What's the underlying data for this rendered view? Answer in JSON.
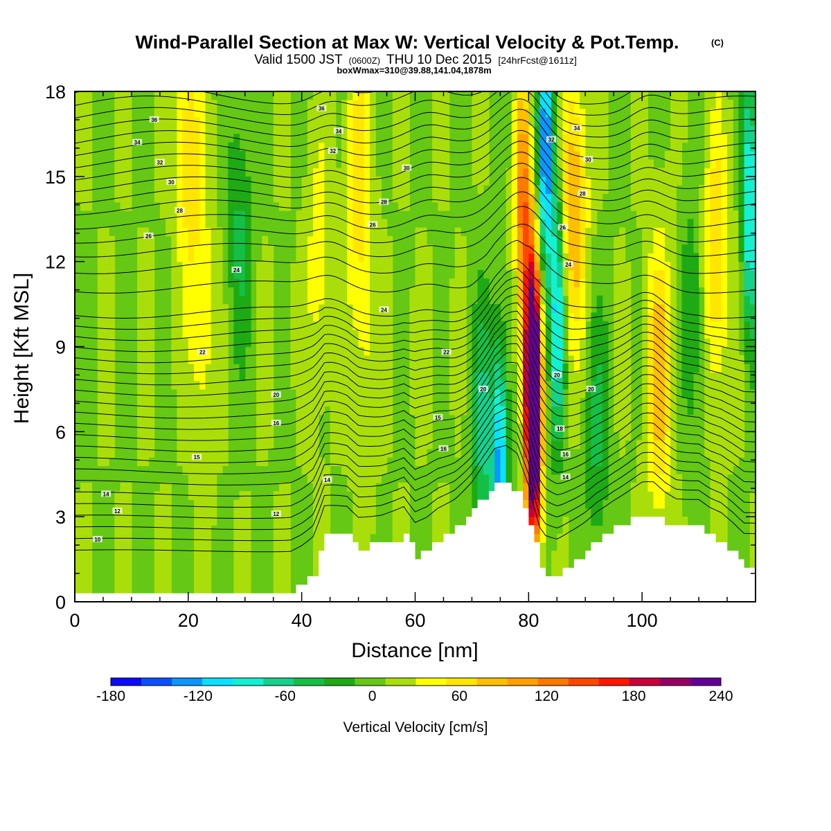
{
  "header": {
    "title": "Wind-Parallel Section at Max W: Vertical Velocity & Pot.Temp.",
    "title_mark": "(C)",
    "valid_prefix": "Valid 1500 JST",
    "valid_utc": "(0600Z)",
    "valid_date": "THU 10 Dec 2015",
    "forecast": "[24hrFcst@1611z]",
    "boxinfo": "boxWmax=310@39.88,141.04,1878m"
  },
  "colors": {
    "palette": [
      "#0a0aff",
      "#0a50ff",
      "#0a96ff",
      "#0ae0ff",
      "#14f0d2",
      "#14d28c",
      "#14bf46",
      "#1eaa14",
      "#64c814",
      "#aade0a",
      "#ffff00",
      "#ffe600",
      "#ffbe00",
      "#ffa000",
      "#ff7800",
      "#ff4600",
      "#ff1400",
      "#c8003c",
      "#960064",
      "#640096"
    ],
    "terrain": "#ffffff",
    "axis": "#000000"
  },
  "chart_data": {
    "type": "heatmap",
    "xlabel": "Distance [nm]",
    "ylabel": "Height [Kft MSL]",
    "xlim": [
      0,
      120
    ],
    "ylim": [
      0,
      18
    ],
    "x_ticks": [
      "0",
      "20",
      "40",
      "60",
      "80",
      "100"
    ],
    "y_ticks": [
      "0",
      "3",
      "6",
      "9",
      "12",
      "15",
      "18"
    ],
    "colorbar": {
      "label": "Vertical Velocity [cm/s]",
      "ticks": [
        "-180",
        "-120",
        "-60",
        "0",
        "60",
        "120",
        "180",
        "240"
      ],
      "min": -180,
      "max": 240,
      "step": 21
    },
    "terrain_height_kft": [
      [
        0,
        0.3
      ],
      [
        38,
        0.3
      ],
      [
        40,
        0.6
      ],
      [
        42,
        1.0
      ],
      [
        44,
        2.3
      ],
      [
        48,
        2.3
      ],
      [
        50,
        1.9
      ],
      [
        54,
        2.0
      ],
      [
        58,
        2.3
      ],
      [
        60,
        1.6
      ],
      [
        62,
        1.8
      ],
      [
        64,
        2.2
      ],
      [
        67,
        2.6
      ],
      [
        70,
        3.2
      ],
      [
        72,
        3.7
      ],
      [
        74,
        4.1
      ],
      [
        76,
        4.1
      ],
      [
        78,
        3.8
      ],
      [
        79,
        3.3
      ],
      [
        80,
        2.8
      ],
      [
        81,
        2.0
      ],
      [
        82,
        1.2
      ],
      [
        83,
        0.9
      ],
      [
        85,
        0.9
      ],
      [
        87,
        1.3
      ],
      [
        90,
        1.8
      ],
      [
        92,
        2.2
      ],
      [
        95,
        2.6
      ],
      [
        98,
        2.9
      ],
      [
        100,
        3.1
      ],
      [
        102,
        3.1
      ],
      [
        104,
        2.8
      ],
      [
        106,
        2.6
      ],
      [
        110,
        2.6
      ],
      [
        112,
        2.3
      ],
      [
        114,
        2.1
      ],
      [
        116,
        1.7
      ],
      [
        118,
        1.2
      ],
      [
        120,
        1.2
      ]
    ],
    "velocity_features_cms": [
      {
        "x": 20,
        "y": 16,
        "w": 60
      },
      {
        "x": 22.5,
        "y": 10,
        "w": 40
      },
      {
        "x": 29,
        "y": 13,
        "w": -45
      },
      {
        "x": 43,
        "y": 12,
        "w": 35
      },
      {
        "x": 50,
        "y": 15,
        "w": 55
      },
      {
        "x": 51,
        "y": 9,
        "w": 25
      },
      {
        "x": 72,
        "y": 6,
        "w": -70
      },
      {
        "x": 75,
        "y": 4.5,
        "w": -130
      },
      {
        "x": 79,
        "y": 14,
        "w": 120
      },
      {
        "x": 80.5,
        "y": 8,
        "w": 200
      },
      {
        "x": 81,
        "y": 6.5,
        "w": 240
      },
      {
        "x": 83,
        "y": 16,
        "w": -150
      },
      {
        "x": 85,
        "y": 10,
        "w": -110
      },
      {
        "x": 88,
        "y": 14,
        "w": 90
      },
      {
        "x": 92,
        "y": 6,
        "w": -45
      },
      {
        "x": 103,
        "y": 8,
        "w": 80
      },
      {
        "x": 109,
        "y": 10,
        "w": -40
      },
      {
        "x": 113,
        "y": 12,
        "w": 70
      },
      {
        "x": 119,
        "y": 14,
        "w": -120
      }
    ],
    "isentrope_base_ft": [
      1800,
      2200,
      2600,
      3000,
      3400,
      3800,
      4200,
      4600,
      5000,
      5400,
      5800,
      6200,
      6600,
      7000,
      7400,
      7800,
      8200,
      8600,
      9000,
      9400,
      9800,
      10200,
      11100,
      11800,
      12400,
      12900,
      13400,
      13900,
      14300,
      14700,
      15100,
      15500,
      15900,
      16300,
      16700,
      17100,
      17500,
      17900
    ],
    "isentrope_labels": [
      {
        "x": 4,
        "y": 2.2,
        "t": "10"
      },
      {
        "x": 7.5,
        "y": 3.2,
        "t": "12"
      },
      {
        "x": 5.5,
        "y": 3.8,
        "t": "14"
      },
      {
        "x": 21.5,
        "y": 5.1,
        "t": "15"
      },
      {
        "x": 35.5,
        "y": 3.1,
        "t": "12"
      },
      {
        "x": 44.5,
        "y": 4.3,
        "t": "14"
      },
      {
        "x": 35.5,
        "y": 6.3,
        "t": "16"
      },
      {
        "x": 35.5,
        "y": 7.3,
        "t": "20"
      },
      {
        "x": 22.5,
        "y": 8.8,
        "t": "22"
      },
      {
        "x": 65,
        "y": 5.4,
        "t": "16"
      },
      {
        "x": 64,
        "y": 6.5,
        "t": "15"
      },
      {
        "x": 72,
        "y": 7.5,
        "t": "20"
      },
      {
        "x": 65.5,
        "y": 8.8,
        "t": "22"
      },
      {
        "x": 54.5,
        "y": 10.3,
        "t": "24"
      },
      {
        "x": 28.5,
        "y": 11.7,
        "t": "24"
      },
      {
        "x": 13,
        "y": 12.9,
        "t": "26"
      },
      {
        "x": 18.5,
        "y": 13.8,
        "t": "28"
      },
      {
        "x": 17,
        "y": 14.8,
        "t": "30"
      },
      {
        "x": 15,
        "y": 15.5,
        "t": "32"
      },
      {
        "x": 11,
        "y": 16.2,
        "t": "34"
      },
      {
        "x": 14,
        "y": 17.0,
        "t": "36"
      },
      {
        "x": 43.5,
        "y": 17.4,
        "t": "36"
      },
      {
        "x": 46.5,
        "y": 16.6,
        "t": "34"
      },
      {
        "x": 45.5,
        "y": 15.9,
        "t": "32"
      },
      {
        "x": 58.5,
        "y": 15.3,
        "t": "30"
      },
      {
        "x": 54.5,
        "y": 14.1,
        "t": "28"
      },
      {
        "x": 52.5,
        "y": 13.3,
        "t": "26"
      },
      {
        "x": 86.5,
        "y": 4.4,
        "t": "14"
      },
      {
        "x": 86.5,
        "y": 5.2,
        "t": "16"
      },
      {
        "x": 85.5,
        "y": 6.1,
        "t": "18"
      },
      {
        "x": 85,
        "y": 8.0,
        "t": "20"
      },
      {
        "x": 91,
        "y": 7.5,
        "t": "20"
      },
      {
        "x": 87,
        "y": 11.9,
        "t": "24"
      },
      {
        "x": 86,
        "y": 13.2,
        "t": "26"
      },
      {
        "x": 89.5,
        "y": 14.4,
        "t": "28"
      },
      {
        "x": 90.5,
        "y": 15.6,
        "t": "30"
      },
      {
        "x": 84,
        "y": 16.3,
        "t": "32"
      },
      {
        "x": 88.5,
        "y": 16.7,
        "t": "34"
      }
    ]
  }
}
